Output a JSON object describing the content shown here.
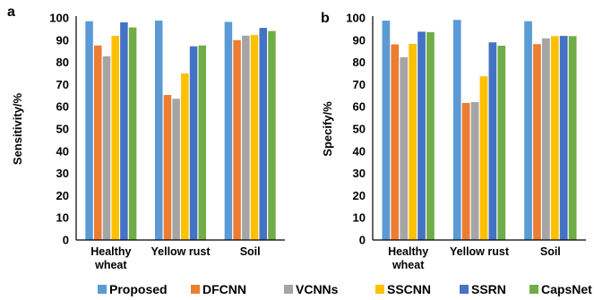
{
  "chart_data": [
    {
      "panel_label": "a",
      "type": "bar",
      "ylabel": "Sensitivity/%",
      "xlabel": "",
      "ylim": [
        0,
        100
      ],
      "yticks": [
        0,
        10,
        20,
        30,
        40,
        50,
        60,
        70,
        80,
        90,
        100
      ],
      "grid": false,
      "categories": [
        [
          "Healthy",
          "wheat"
        ],
        [
          "Yellow rust"
        ],
        [
          "Soil"
        ]
      ],
      "series": [
        {
          "name": "Proposed",
          "values": [
            98.5,
            98.8,
            98.2
          ]
        },
        {
          "name": "DFCNN",
          "values": [
            87.6,
            65.3,
            90.0
          ]
        },
        {
          "name": "VCNNs",
          "values": [
            82.7,
            63.6,
            92.0
          ]
        },
        {
          "name": "SSCNN",
          "values": [
            91.9,
            75.0,
            92.3
          ]
        },
        {
          "name": "SSRN",
          "values": [
            98.0,
            87.2,
            95.5
          ]
        },
        {
          "name": "CapsNet",
          "values": [
            95.7,
            87.6,
            94.1
          ]
        }
      ]
    },
    {
      "panel_label": "b",
      "type": "bar",
      "ylabel": "Specify/%",
      "xlabel": "",
      "ylim": [
        0,
        100
      ],
      "yticks": [
        0,
        10,
        20,
        30,
        40,
        50,
        60,
        70,
        80,
        90,
        100
      ],
      "grid": false,
      "categories": [
        [
          "Healthy",
          "wheat"
        ],
        [
          "Yellow rust"
        ],
        [
          "Soil"
        ]
      ],
      "series": [
        {
          "name": "Proposed",
          "values": [
            98.8,
            99.1,
            98.5
          ]
        },
        {
          "name": "DFCNN",
          "values": [
            88.1,
            61.7,
            88.2
          ]
        },
        {
          "name": "VCNNs",
          "values": [
            82.3,
            62.1,
            90.8
          ]
        },
        {
          "name": "SSCNN",
          "values": [
            88.3,
            73.7,
            91.8
          ]
        },
        {
          "name": "SSRN",
          "values": [
            93.8,
            89.0,
            91.9
          ]
        },
        {
          "name": "CapsNet",
          "values": [
            93.6,
            87.5,
            91.8
          ]
        }
      ]
    }
  ],
  "colors": [
    "#5B9BD5",
    "#ED7D31",
    "#A5A5A5",
    "#FFC000",
    "#4472C4",
    "#70AD47"
  ],
  "legend": {
    "placement": "bottom",
    "items": [
      "Proposed",
      "DFCNN",
      "VCNNs",
      "SSCNN",
      "SSRN",
      "CapsNet"
    ]
  }
}
